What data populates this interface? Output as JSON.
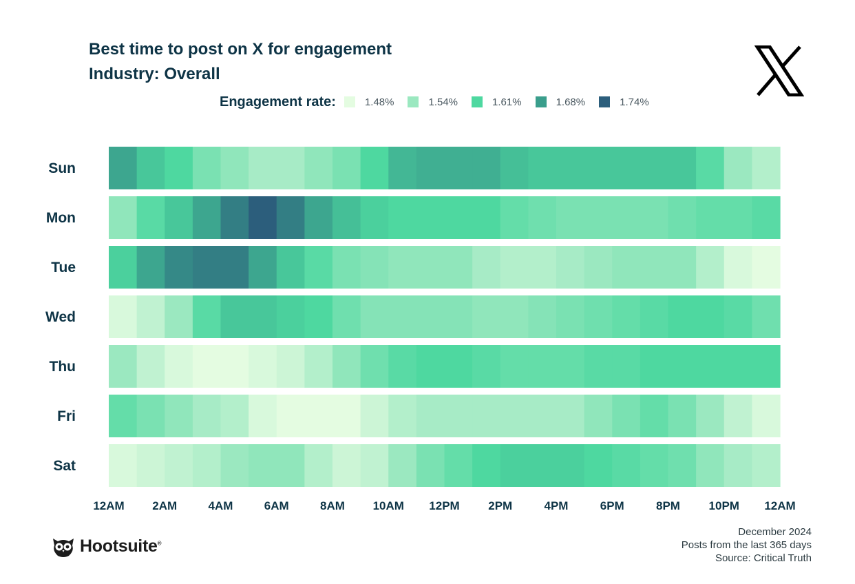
{
  "header": {
    "title": "Best time to post on X for engagement",
    "subtitle": "Industry: Overall",
    "logo_icon": "x-logo-icon"
  },
  "legend": {
    "title": "Engagement rate:",
    "items": [
      {
        "label": "1.48%",
        "color": "#e4fce1"
      },
      {
        "label": "1.54%",
        "color": "#9be8c0"
      },
      {
        "label": "1.61%",
        "color": "#4ed8a0"
      },
      {
        "label": "1.68%",
        "color": "#3a9e8c"
      },
      {
        "label": "1.74%",
        "color": "#2c5e7c"
      }
    ]
  },
  "chart_data": {
    "type": "heatmap",
    "title": "Best time to post on X for engagement",
    "subtitle": "Industry: Overall",
    "value_unit": "engagement rate (%)",
    "color_scale": {
      "stops": [
        1.48,
        1.54,
        1.61,
        1.68,
        1.74
      ],
      "colors": [
        "#e4fce1",
        "#9be8c0",
        "#4ed8a0",
        "#3a9e8c",
        "#2c5e7c"
      ]
    },
    "rows": [
      "Sun",
      "Mon",
      "Tue",
      "Wed",
      "Thu",
      "Fri",
      "Sat"
    ],
    "x_tick_labels": [
      "12AM",
      "2AM",
      "4AM",
      "6AM",
      "8AM",
      "10AM",
      "12PM",
      "2PM",
      "4PM",
      "6PM",
      "8PM",
      "10PM",
      "12AM"
    ],
    "hours": [
      0,
      1,
      2,
      3,
      4,
      5,
      6,
      7,
      8,
      9,
      10,
      11,
      12,
      13,
      14,
      15,
      16,
      17,
      18,
      19,
      20,
      21,
      22,
      23
    ],
    "values": [
      [
        1.67,
        1.63,
        1.61,
        1.57,
        1.55,
        1.53,
        1.53,
        1.55,
        1.57,
        1.61,
        1.65,
        1.66,
        1.66,
        1.66,
        1.64,
        1.63,
        1.63,
        1.63,
        1.63,
        1.63,
        1.63,
        1.6,
        1.54,
        1.52
      ],
      [
        1.55,
        1.6,
        1.63,
        1.67,
        1.71,
        1.74,
        1.71,
        1.67,
        1.64,
        1.62,
        1.61,
        1.61,
        1.61,
        1.61,
        1.59,
        1.58,
        1.57,
        1.57,
        1.57,
        1.57,
        1.58,
        1.59,
        1.59,
        1.6
      ],
      [
        1.62,
        1.67,
        1.7,
        1.71,
        1.71,
        1.67,
        1.63,
        1.6,
        1.57,
        1.56,
        1.55,
        1.55,
        1.55,
        1.53,
        1.52,
        1.52,
        1.53,
        1.54,
        1.55,
        1.55,
        1.55,
        1.52,
        1.49,
        1.48
      ],
      [
        1.49,
        1.51,
        1.54,
        1.6,
        1.63,
        1.63,
        1.62,
        1.61,
        1.58,
        1.56,
        1.56,
        1.56,
        1.56,
        1.55,
        1.55,
        1.56,
        1.57,
        1.58,
        1.59,
        1.6,
        1.61,
        1.61,
        1.6,
        1.58
      ],
      [
        1.54,
        1.51,
        1.49,
        1.48,
        1.48,
        1.49,
        1.5,
        1.52,
        1.55,
        1.58,
        1.6,
        1.61,
        1.61,
        1.6,
        1.59,
        1.59,
        1.59,
        1.6,
        1.6,
        1.61,
        1.61,
        1.61,
        1.61,
        1.61
      ],
      [
        1.59,
        1.57,
        1.55,
        1.53,
        1.52,
        1.49,
        1.48,
        1.48,
        1.48,
        1.5,
        1.52,
        1.53,
        1.53,
        1.53,
        1.53,
        1.53,
        1.53,
        1.55,
        1.57,
        1.59,
        1.57,
        1.54,
        1.51,
        1.49
      ],
      [
        1.49,
        1.5,
        1.51,
        1.52,
        1.54,
        1.55,
        1.55,
        1.52,
        1.5,
        1.51,
        1.54,
        1.57,
        1.59,
        1.61,
        1.62,
        1.62,
        1.62,
        1.61,
        1.6,
        1.59,
        1.58,
        1.55,
        1.53,
        1.52
      ]
    ],
    "legend_position": "top",
    "grid": false
  },
  "footer": {
    "brand": "Hootsuite",
    "brand_mark": "®",
    "brand_icon": "owl-logo-icon",
    "lines": [
      "December 2024",
      "Posts from the last 365 days",
      "Source: Critical Truth"
    ]
  }
}
